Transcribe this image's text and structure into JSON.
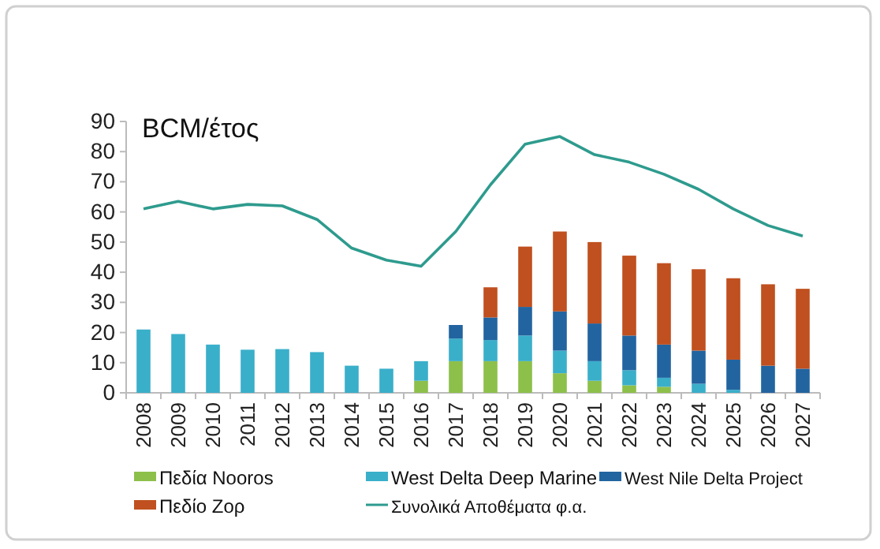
{
  "chart_data": {
    "type": "bar",
    "stacked": true,
    "ylabel": "BCM/έτος",
    "categories": [
      "2008",
      "2009",
      "2010",
      "2011",
      "2012",
      "2013",
      "2014",
      "2015",
      "2016",
      "2017",
      "2018",
      "2019",
      "2020",
      "2021",
      "2022",
      "2023",
      "2024",
      "2025",
      "2026",
      "2027"
    ],
    "series": [
      {
        "name": "Πεδία Nooros",
        "color": "#8dc04a",
        "values": [
          0,
          0,
          0,
          0,
          0,
          0,
          0,
          0,
          4,
          10.5,
          10.5,
          10.5,
          6.5,
          4,
          2.5,
          2,
          0,
          0,
          0,
          0
        ]
      },
      {
        "name": "West Delta Deep Marine",
        "color": "#3aafca",
        "values": [
          21,
          19.5,
          16,
          14.3,
          14.5,
          13.5,
          9,
          8,
          6.5,
          7.5,
          7,
          8.5,
          7.5,
          6.5,
          5,
          3,
          3,
          1,
          0,
          0
        ]
      },
      {
        "name": "West Nile Delta Project",
        "color": "#2264a0",
        "values": [
          0,
          0,
          0,
          0,
          0,
          0,
          0,
          0,
          0,
          4.5,
          7.5,
          9.5,
          13,
          12.5,
          11.5,
          11,
          11,
          10,
          9,
          8
        ]
      },
      {
        "name": "Πεδίο Ζορ",
        "color": "#c0501f",
        "values": [
          0,
          0,
          0,
          0,
          0,
          0,
          0,
          0,
          0,
          0,
          10,
          20,
          26.5,
          27,
          26.5,
          27,
          27,
          27,
          27,
          26.5
        ]
      },
      {
        "name": "Συνολικά Αποθέματα φ.α.",
        "type": "line",
        "color": "#2e9b8e",
        "values": [
          61,
          63.5,
          61,
          62.5,
          62,
          57.5,
          48,
          44,
          42,
          53.5,
          69,
          82.5,
          85,
          79,
          76.5,
          72.5,
          67.5,
          61,
          55.5,
          52
        ]
      }
    ],
    "ylim": [
      0,
      90
    ],
    "yticks": [
      0,
      10,
      20,
      30,
      40,
      50,
      60,
      70,
      80,
      90
    ],
    "grid": false,
    "legend": "bottom",
    "marker": "none",
    "line_style": "solid"
  }
}
